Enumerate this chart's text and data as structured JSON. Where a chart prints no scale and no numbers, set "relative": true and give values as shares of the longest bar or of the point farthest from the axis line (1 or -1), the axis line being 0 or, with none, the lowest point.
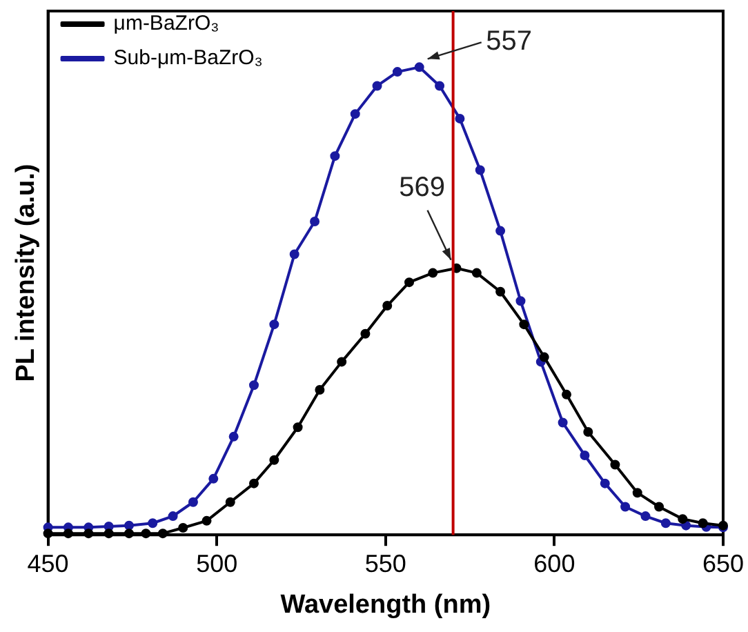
{
  "chart_data": {
    "type": "line",
    "xlabel": "Wavelength (nm)",
    "ylabel": "PL intensity (a.u.)",
    "relative": true,
    "xlim": [
      450,
      650
    ],
    "xticks": [
      450,
      500,
      550,
      600,
      650
    ],
    "grid": false,
    "legend": "top left",
    "marker": "circle",
    "line_style": "solid",
    "series": [
      {
        "name": "μm-BaZrO₃",
        "color": "#000000",
        "x": [
          450,
          456,
          462,
          468,
          474,
          479,
          484,
          490,
          497,
          504,
          511,
          517,
          524,
          530.5,
          537,
          544,
          550.5,
          557,
          564,
          571,
          577,
          584,
          591,
          597,
          603.6,
          610,
          618,
          624.6,
          631,
          638,
          644,
          650
        ],
        "values": [
          0.003,
          0.003,
          0.003,
          0.003,
          0.003,
          0.003,
          0.003,
          0.015,
          0.03,
          0.07,
          0.11,
          0.16,
          0.23,
          0.31,
          0.37,
          0.43,
          0.49,
          0.54,
          0.56,
          0.57,
          0.56,
          0.52,
          0.45,
          0.38,
          0.3,
          0.22,
          0.15,
          0.09,
          0.06,
          0.034,
          0.025,
          0.02
        ]
      },
      {
        "name": "Sub-μm-BaZrO₃",
        "color": "#1a1aa0",
        "x": [
          450,
          456,
          462,
          468,
          474,
          481,
          487,
          493,
          499,
          505,
          511,
          517,
          523,
          529,
          535,
          541,
          547.5,
          553.5,
          560,
          566,
          572,
          578,
          584,
          590,
          596,
          602.5,
          609,
          615,
          621,
          627,
          633,
          639,
          645,
          650
        ],
        "values": [
          0.016,
          0.016,
          0.016,
          0.018,
          0.02,
          0.025,
          0.04,
          0.07,
          0.12,
          0.21,
          0.32,
          0.45,
          0.6,
          0.67,
          0.81,
          0.9,
          0.96,
          0.99,
          1.0,
          0.96,
          0.89,
          0.78,
          0.65,
          0.5,
          0.37,
          0.24,
          0.17,
          0.11,
          0.06,
          0.04,
          0.025,
          0.02,
          0.017,
          0.016
        ]
      }
    ],
    "ref_lines": [
      {
        "axis": "x",
        "value": 570,
        "color": "#c00000"
      }
    ],
    "annotations": [
      {
        "text": "557",
        "x": 560,
        "y": 1.0
      },
      {
        "text": "569",
        "x": 571,
        "y": 0.57
      }
    ]
  }
}
